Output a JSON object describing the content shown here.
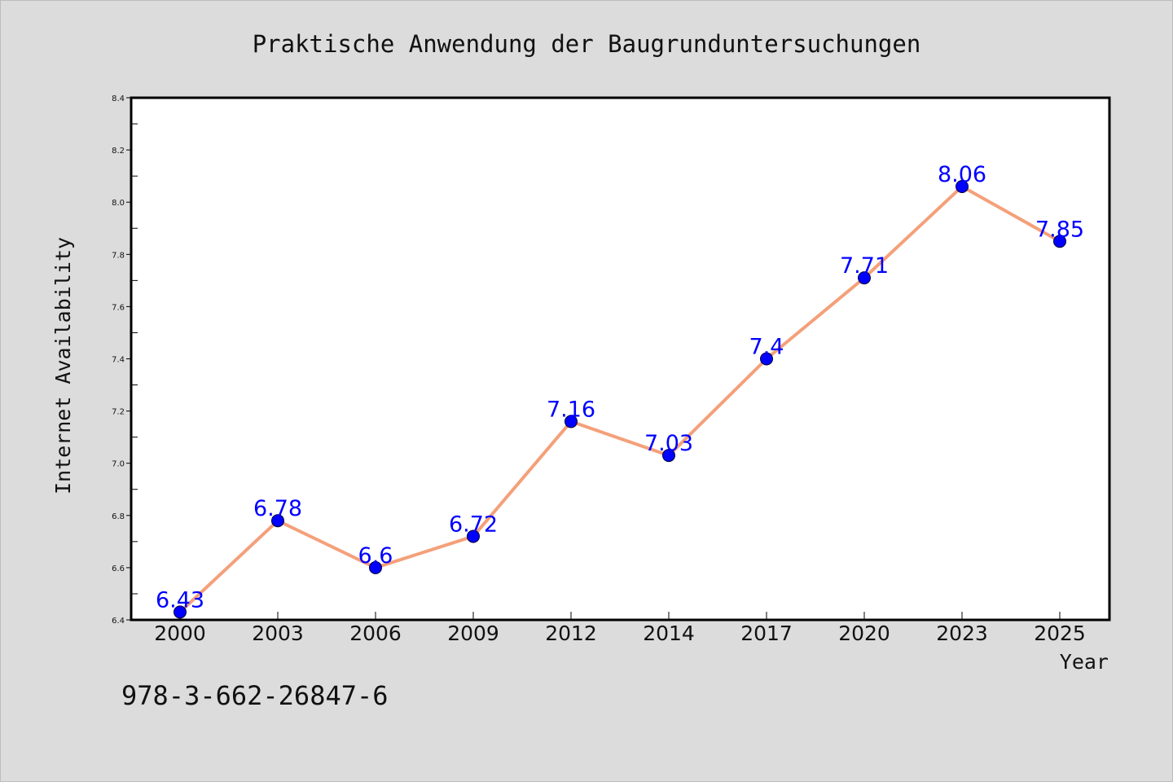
{
  "chart_data": {
    "type": "line",
    "title": "Praktische Anwendung der Baugrunduntersuchungen",
    "xlabel": "Year",
    "ylabel": "Internet Availability",
    "categories": [
      "2000",
      "2003",
      "2006",
      "2009",
      "2012",
      "2014",
      "2017",
      "2020",
      "2023",
      "2025"
    ],
    "series": [
      {
        "values": [
          6.43,
          6.78,
          6.6,
          6.72,
          7.16,
          7.03,
          7.4,
          7.71,
          8.06,
          7.85
        ],
        "labels": [
          "6.43",
          "6.78",
          "6.6",
          "6.72",
          "7.16",
          "7.03",
          "7.4",
          "7.71",
          "8.06",
          "7.85"
        ],
        "line_color": "#f4a07a",
        "marker_color": "#0000ff"
      }
    ],
    "ylim": [
      6.4,
      8.4
    ],
    "yticks": [
      "6.4",
      "6.6",
      "6.8",
      "7.0",
      "7.2",
      "7.4",
      "7.6",
      "7.8",
      "8.0",
      "8.2",
      "8.4"
    ],
    "grid": false,
    "legend": "none"
  },
  "footer": {
    "isbn": "978-3-662-26847-6"
  },
  "colors": {
    "background": "#dcdcdc",
    "plot_background": "#ffffff",
    "axis": "#000000",
    "data_label": "#0000ff"
  }
}
